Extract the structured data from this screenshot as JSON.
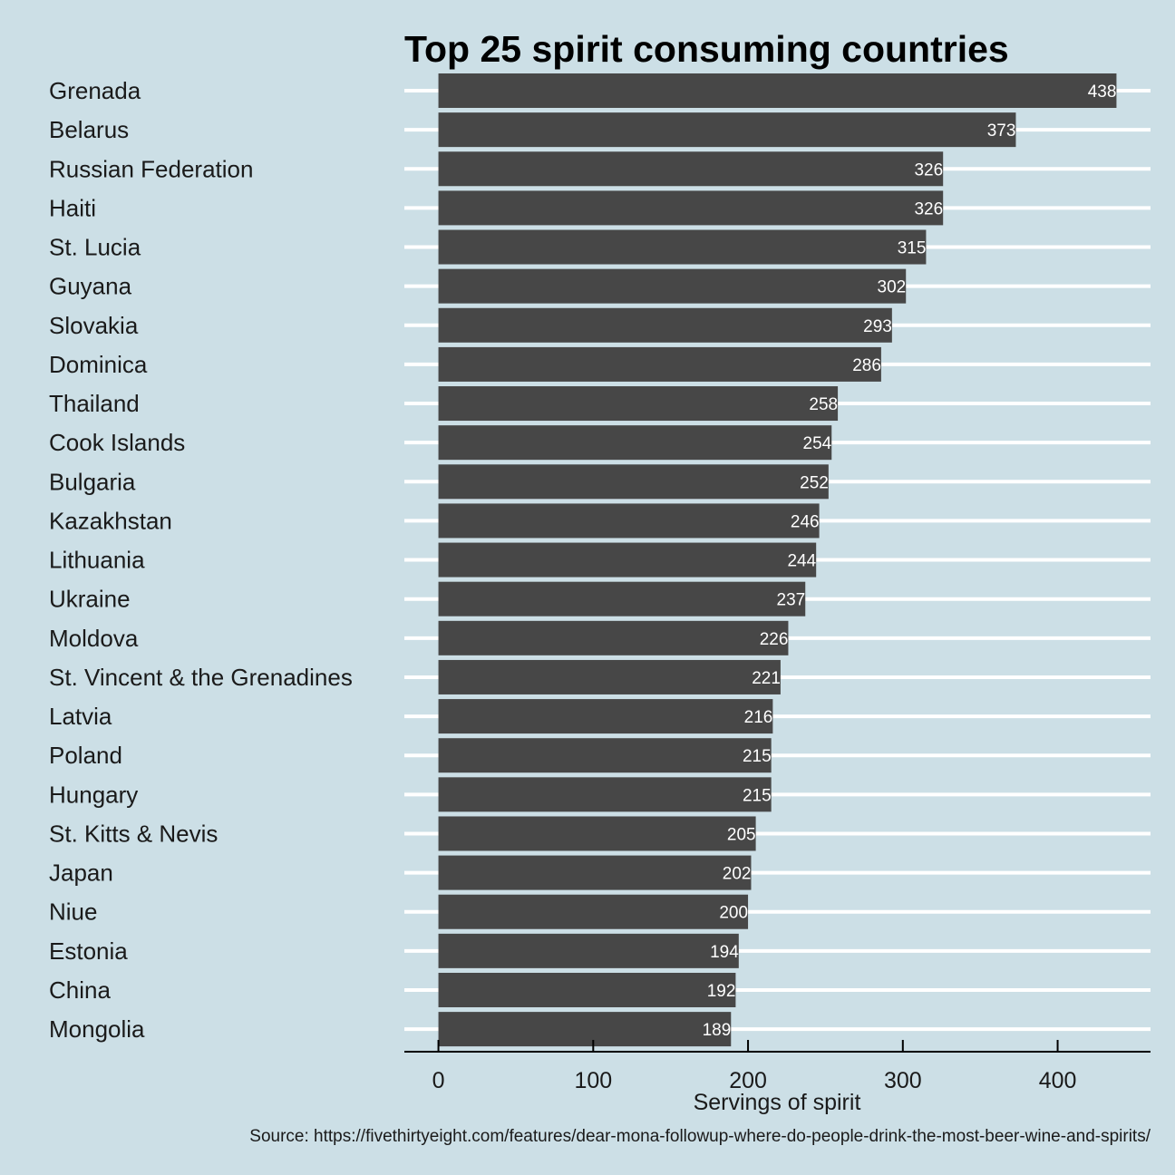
{
  "chart_data": {
    "type": "bar",
    "orientation": "horizontal",
    "title": "Top 25 spirit consuming countries",
    "xlabel": "Servings of spirit",
    "ylabel": "",
    "caption": "Source: https://fivethirtyeight.com/features/dear-mona-followup-where-do-people-drink-the-most-beer-wine-and-spirits/",
    "xlim": [
      -22,
      460
    ],
    "xticks": [
      0,
      100,
      200,
      300,
      400
    ],
    "grid": "horizontal major lines",
    "colors": {
      "background": "#ccdfe6",
      "bar": "#474747",
      "grid": "#ffffff",
      "value_label": "#ffffff"
    },
    "categories": [
      "Grenada",
      "Belarus",
      "Russian Federation",
      "Haiti",
      "St. Lucia",
      "Guyana",
      "Slovakia",
      "Dominica",
      "Thailand",
      "Cook Islands",
      "Bulgaria",
      "Kazakhstan",
      "Lithuania",
      "Ukraine",
      "Moldova",
      "St. Vincent & the Grenadines",
      "Latvia",
      "Poland",
      "Hungary",
      "St. Kitts & Nevis",
      "Japan",
      "Niue",
      "Estonia",
      "China",
      "Mongolia"
    ],
    "values": [
      438,
      373,
      326,
      326,
      315,
      302,
      293,
      286,
      258,
      254,
      252,
      246,
      244,
      237,
      226,
      221,
      216,
      215,
      215,
      205,
      202,
      200,
      194,
      192,
      189
    ]
  }
}
